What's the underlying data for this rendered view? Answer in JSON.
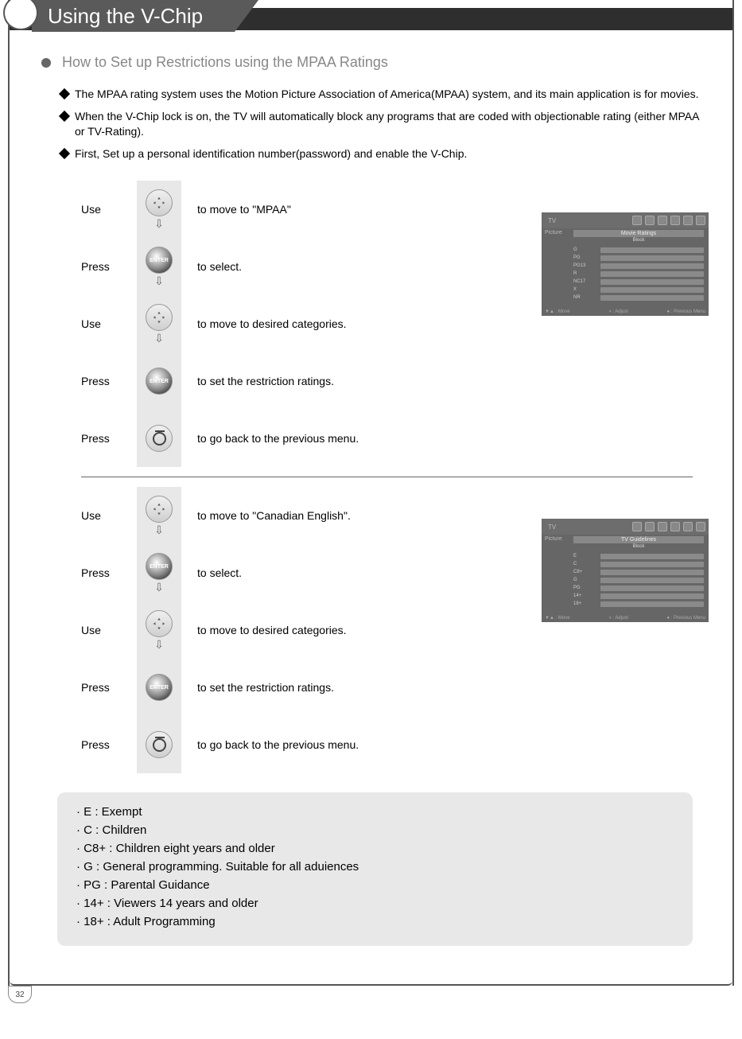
{
  "page_number": "32",
  "title": "Using the V-Chip",
  "section_heading": "How to Set up Restrictions using the MPAA Ratings",
  "intro": [
    "The MPAA rating system uses the Motion Picture Association of America(MPAA) system, and its main application is for movies.",
    "When the V-Chip lock is on, the TV will automatically block any programs that are coded with objectionable rating (either MPAA or TV-Rating).",
    "First, Set up a personal identification number(password) and enable the V-Chip."
  ],
  "steps_a": [
    {
      "verb": "Use",
      "icon": "nav",
      "action": "to move to \"MPAA\"",
      "arrow_after": true
    },
    {
      "verb": "Press",
      "icon": "enter",
      "action": "to select.",
      "arrow_after": true
    },
    {
      "verb": "Use",
      "icon": "nav",
      "action": "to move to desired categories.",
      "arrow_after": true
    },
    {
      "verb": "Press",
      "icon": "enter",
      "action": "to set the restriction ratings.",
      "arrow_after": false
    },
    {
      "verb": "Press",
      "icon": "back",
      "action": "to go back to the previous menu.",
      "arrow_after": false
    }
  ],
  "steps_b": [
    {
      "verb": "Use",
      "icon": "nav",
      "action": "to move to \"Canadian English\".",
      "arrow_after": true
    },
    {
      "verb": "Press",
      "icon": "enter",
      "action": "to select.",
      "arrow_after": true
    },
    {
      "verb": "Use",
      "icon": "nav",
      "action": "to move to desired categories.",
      "arrow_after": true
    },
    {
      "verb": "Press",
      "icon": "enter",
      "action": "to set the restriction ratings.",
      "arrow_after": false
    },
    {
      "verb": "Press",
      "icon": "back",
      "action": "to go back to the previous menu.",
      "arrow_after": false
    }
  ],
  "tv_a": {
    "top_label": "TV",
    "header": "Movie Ratings",
    "sub": "Block",
    "rows": [
      "G",
      "PG",
      "PG13",
      "R",
      "NC17",
      "X",
      "NR"
    ],
    "foot_left": "▼▲ : Move",
    "foot_mid": "◑ : Adjust",
    "foot_right": "● : Previous Menu"
  },
  "tv_b": {
    "top_label": "TV",
    "header": "TV Guidelines",
    "sub": "Block",
    "rows": [
      "E",
      "C",
      "C8+",
      "G",
      "PG",
      "14+",
      "18+"
    ],
    "foot_left": "▼▲ : Move",
    "foot_mid": "◑ : Adjust",
    "foot_right": "● : Previous Menu"
  },
  "legend": [
    "E : Exempt",
    "C : Children",
    "C8+ : Children eight years and older",
    "G : General programming. Suitable for all aduiences",
    "PG : Parental Guidance",
    "14+ : Viewers 14 years and older",
    "18+ : Adult Programming"
  ],
  "colors": {
    "title_bg": "#5a5a5a",
    "bar_bg": "#2e2e2e",
    "heading": "#888888",
    "icon_col_bg": "#e8e8e8",
    "legend_bg": "#e8e8e8",
    "tv_bg": "#666666"
  }
}
